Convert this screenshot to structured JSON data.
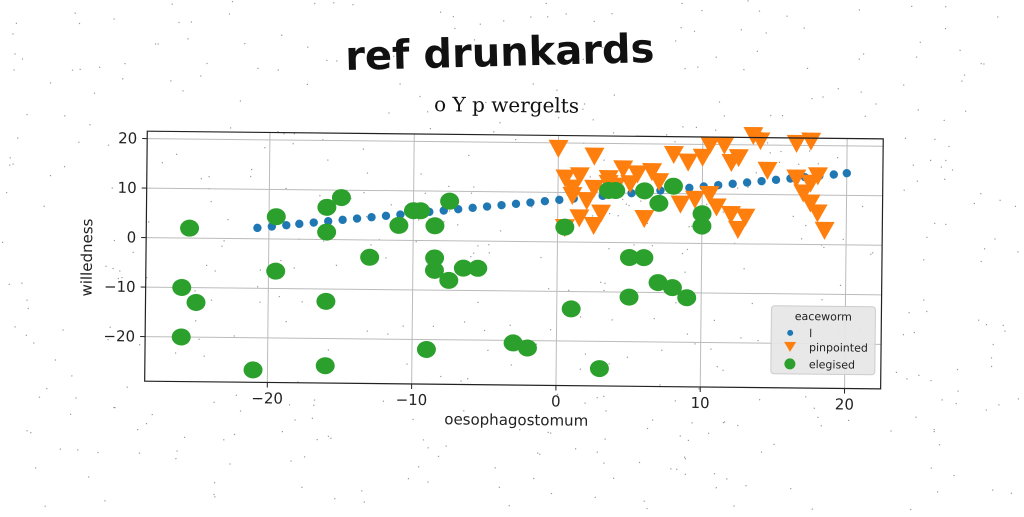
{
  "title": "ref drunkards",
  "chart_data": {
    "type": "scatter",
    "title": "o Y p wergelts",
    "xlabel": "oesophagostomum",
    "ylabel": "willedness",
    "xlim": [
      -28.5,
      22.5
    ],
    "ylim": [
      -29,
      21.5
    ],
    "xticks": [
      -20,
      -10,
      0,
      10,
      20
    ],
    "yticks": [
      -20,
      -10,
      0,
      10,
      20
    ],
    "grid": true,
    "legend": {
      "title": "eaceworm",
      "placement": "lower-right"
    },
    "series": [
      {
        "name": "l",
        "color": "#1f77b4",
        "marker": "circle-small",
        "points": [
          [
            -20.8,
            2.2
          ],
          [
            -19.8,
            2.5
          ],
          [
            -18.8,
            2.8
          ],
          [
            -17.9,
            3.1
          ],
          [
            -16.9,
            3.4
          ],
          [
            -15.9,
            3.7
          ],
          [
            -14.9,
            4.0
          ],
          [
            -13.9,
            4.3
          ],
          [
            -12.9,
            4.6
          ],
          [
            -11.9,
            4.9
          ],
          [
            -10.9,
            5.2
          ],
          [
            -9.9,
            5.5
          ],
          [
            -8.9,
            5.8
          ],
          [
            -7.9,
            6.1
          ],
          [
            -6.9,
            6.4
          ],
          [
            -5.9,
            6.7
          ],
          [
            -4.9,
            7.0
          ],
          [
            -3.9,
            7.3
          ],
          [
            -2.9,
            7.6
          ],
          [
            -1.9,
            7.9
          ],
          [
            -0.9,
            8.2
          ],
          [
            0.1,
            8.5
          ],
          [
            1.1,
            8.8
          ],
          [
            2.1,
            9.1
          ],
          [
            3.1,
            9.4
          ],
          [
            4.1,
            9.7
          ],
          [
            5.1,
            10.0
          ],
          [
            6.1,
            10.3
          ],
          [
            7.1,
            10.6
          ],
          [
            8.1,
            10.9
          ],
          [
            9.1,
            11.2
          ],
          [
            10.1,
            11.5
          ],
          [
            11.1,
            11.8
          ],
          [
            12.1,
            12.1
          ],
          [
            13.1,
            12.4
          ],
          [
            14.1,
            12.7
          ],
          [
            15.1,
            13.0
          ],
          [
            16.1,
            13.3
          ],
          [
            17.1,
            13.6
          ],
          [
            18.1,
            13.9
          ],
          [
            19.1,
            14.2
          ],
          [
            20.0,
            14.5
          ]
        ]
      },
      {
        "name": "pinpointed",
        "color": "#ff7f0e",
        "marker": "triangle-down",
        "points": [
          [
            0.0,
            19.0
          ],
          [
            2.5,
            17.5
          ],
          [
            0.5,
            13.0
          ],
          [
            1.5,
            13.5
          ],
          [
            2.5,
            11.0
          ],
          [
            3.5,
            12.0
          ],
          [
            4.5,
            15.0
          ],
          [
            5.5,
            14.0
          ],
          [
            6.5,
            14.5
          ],
          [
            7.0,
            12.5
          ],
          [
            8.0,
            18.0
          ],
          [
            9.0,
            16.5
          ],
          [
            10.0,
            17.5
          ],
          [
            10.5,
            20.0
          ],
          [
            11.5,
            20.0
          ],
          [
            12.0,
            16.5
          ],
          [
            12.5,
            17.5
          ],
          [
            13.5,
            22.0
          ],
          [
            14.0,
            21.0
          ],
          [
            14.5,
            15.0
          ],
          [
            16.5,
            20.5
          ],
          [
            17.5,
            21.0
          ],
          [
            16.5,
            13.5
          ],
          [
            17.5,
            12.5
          ],
          [
            18.0,
            14.0
          ],
          [
            17.0,
            10.5
          ],
          [
            17.5,
            8.5
          ],
          [
            18.0,
            6.5
          ],
          [
            18.5,
            3.0
          ],
          [
            13.0,
            5.5
          ],
          [
            11.0,
            7.5
          ],
          [
            12.0,
            6.0
          ],
          [
            9.5,
            9.0
          ],
          [
            10.5,
            10.0
          ],
          [
            8.5,
            8.0
          ],
          [
            1.0,
            9.5
          ],
          [
            2.0,
            8.5
          ],
          [
            3.0,
            6.0
          ],
          [
            1.5,
            5.0
          ],
          [
            2.5,
            3.5
          ],
          [
            6.0,
            5.0
          ],
          [
            12.5,
            3.0
          ],
          [
            4.0,
            11.5
          ],
          [
            0.5,
            3.0
          ],
          [
            3.5,
            13.0
          ],
          [
            5.0,
            12.0
          ],
          [
            1.0,
            11.0
          ]
        ]
      },
      {
        "name": "elegised",
        "color": "#2ca02c",
        "marker": "circle-large",
        "points": [
          [
            -25.5,
            2.0
          ],
          [
            -19.5,
            4.5
          ],
          [
            -16.0,
            6.5
          ],
          [
            -15.0,
            8.5
          ],
          [
            -16.0,
            1.5
          ],
          [
            -11.0,
            3.0
          ],
          [
            -10.0,
            6.0
          ],
          [
            -9.5,
            6.0
          ],
          [
            -8.5,
            3.0
          ],
          [
            -7.5,
            8.0
          ],
          [
            -13.0,
            -3.5
          ],
          [
            -19.5,
            -6.5
          ],
          [
            -26.0,
            -10.0
          ],
          [
            -25.0,
            -13.0
          ],
          [
            -16.0,
            -12.5
          ],
          [
            -8.5,
            -3.5
          ],
          [
            -8.5,
            -6.0
          ],
          [
            -7.5,
            -8.0
          ],
          [
            -6.5,
            -5.5
          ],
          [
            -5.5,
            -5.5
          ],
          [
            -26.0,
            -20.0
          ],
          [
            -21.0,
            -26.5
          ],
          [
            -16.0,
            -25.5
          ],
          [
            -9.0,
            -22.0
          ],
          [
            -3.0,
            -20.5
          ],
          [
            -2.0,
            -21.5
          ],
          [
            3.0,
            -25.5
          ],
          [
            1.0,
            -13.5
          ],
          [
            5.0,
            -11.0
          ],
          [
            5.0,
            -3.0
          ],
          [
            6.0,
            -3.0
          ],
          [
            7.0,
            -8.0
          ],
          [
            8.0,
            -9.0
          ],
          [
            9.0,
            -11.0
          ],
          [
            0.5,
            3.0
          ],
          [
            4.0,
            10.5
          ],
          [
            6.0,
            10.5
          ],
          [
            7.0,
            8.0
          ],
          [
            8.0,
            11.5
          ],
          [
            10.0,
            6.0
          ],
          [
            10.0,
            3.5
          ],
          [
            3.5,
            10.5
          ]
        ]
      }
    ]
  }
}
